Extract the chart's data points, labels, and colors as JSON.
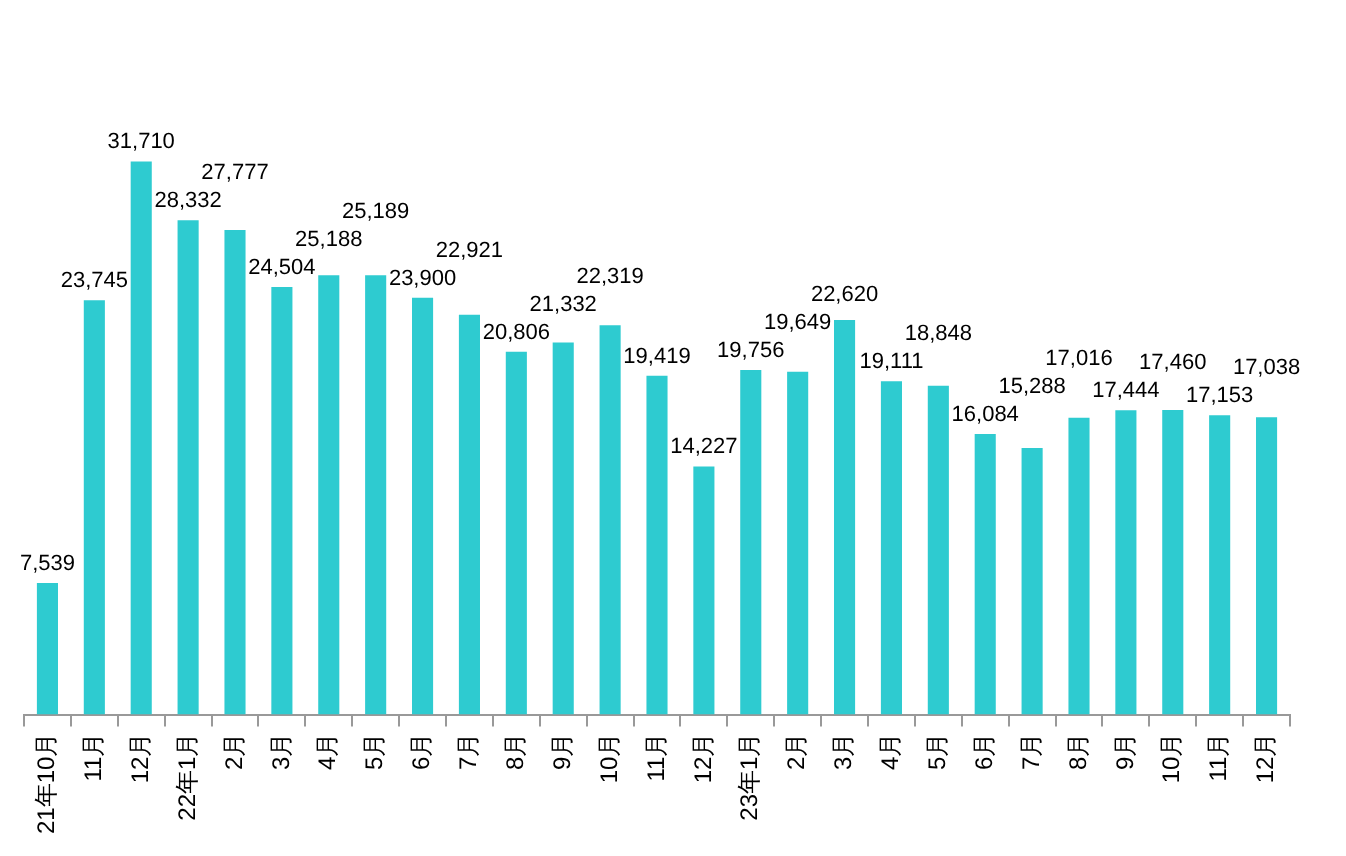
{
  "chart_data": {
    "type": "bar",
    "categories": [
      "21年10月",
      "11月",
      "12月",
      "22年1月",
      "2月",
      "3月",
      "4月",
      "5月",
      "6月",
      "7月",
      "8月",
      "9月",
      "10月",
      "11月",
      "12月",
      "23年1月",
      "2月",
      "3月",
      "4月",
      "5月",
      "6月",
      "7月",
      "8月",
      "9月",
      "10月",
      "11月",
      "12月"
    ],
    "values": [
      7539,
      23745,
      31710,
      28332,
      27777,
      24504,
      25188,
      25189,
      23900,
      22921,
      20806,
      21332,
      22319,
      19419,
      14227,
      19756,
      19649,
      22620,
      19111,
      18848,
      16084,
      15288,
      17016,
      17444,
      17460,
      17153,
      17038
    ],
    "value_labels": [
      "7,539",
      "23,745",
      "31,710",
      "28,332",
      "27,777",
      "24,504",
      "25,188",
      "25,189",
      "23,900",
      "22,921",
      "20,806",
      "21,332",
      "22,319",
      "19,419",
      "14,227",
      "19,756",
      "19,649",
      "22,620",
      "19,111",
      "18,848",
      "16,084",
      "15,288",
      "17,016",
      "17,444",
      "17,460",
      "17,153",
      "17,038"
    ],
    "color": "#2ecbd0",
    "tick_labels": "x"
  }
}
